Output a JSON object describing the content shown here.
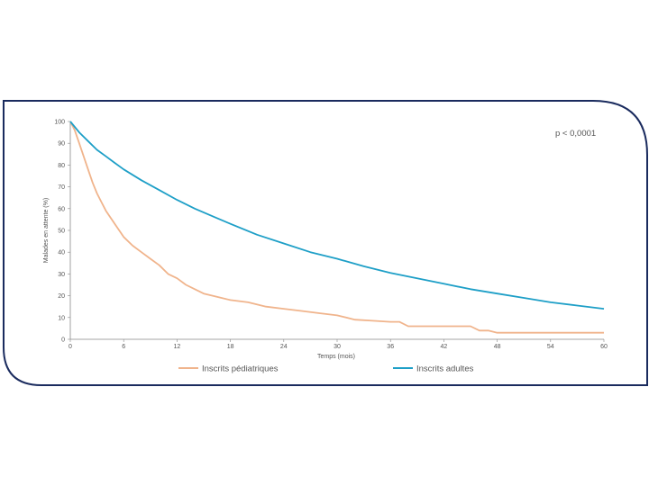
{
  "chart_data": {
    "type": "line",
    "title": "",
    "xlabel": "Temps (mois)",
    "ylabel": "Malades en attente (%)",
    "xlim": [
      0,
      60
    ],
    "ylim": [
      0,
      100
    ],
    "x_ticks": [
      0,
      6,
      12,
      18,
      24,
      30,
      36,
      42,
      48,
      54,
      60
    ],
    "y_ticks": [
      0,
      10,
      20,
      30,
      40,
      50,
      60,
      70,
      80,
      90,
      100
    ],
    "grid": false,
    "legend_position": "bottom",
    "annotation": "p < 0,0001",
    "series": [
      {
        "name": "Inscrits pédiatriques",
        "color": "#f0b48c",
        "x": [
          0,
          0.5,
          1,
          1.5,
          2,
          2.5,
          3,
          3.5,
          4,
          5,
          6,
          7,
          8,
          9,
          10,
          11,
          12,
          13,
          14,
          15,
          16,
          17,
          18,
          20,
          22,
          24,
          26,
          28,
          30,
          31,
          32,
          34,
          36,
          37,
          38,
          40,
          42,
          45,
          46,
          47,
          48,
          50,
          54,
          60
        ],
        "y": [
          100,
          96,
          90,
          84,
          78,
          72,
          67,
          63,
          59,
          53,
          47,
          43,
          40,
          37,
          34,
          30,
          28,
          25,
          23,
          21,
          20,
          19,
          18,
          17,
          15,
          14,
          13,
          12,
          11,
          10,
          9,
          8.5,
          8,
          8,
          6,
          6,
          6,
          6,
          4,
          4,
          3,
          3,
          3,
          3
        ]
      },
      {
        "name": "Inscrits adultes",
        "color": "#1e9fc7",
        "x": [
          0,
          1,
          2,
          3,
          4,
          5,
          6,
          8,
          10,
          12,
          14,
          16,
          18,
          21,
          24,
          27,
          30,
          33,
          36,
          39,
          42,
          45,
          48,
          51,
          54,
          57,
          60
        ],
        "y": [
          100,
          95,
          91,
          87,
          84,
          81,
          78,
          73,
          68.5,
          64,
          60,
          56.5,
          53,
          48,
          44,
          40,
          37,
          33.5,
          30.5,
          28,
          25.5,
          23,
          21,
          19,
          17,
          15.5,
          14
        ]
      }
    ]
  }
}
